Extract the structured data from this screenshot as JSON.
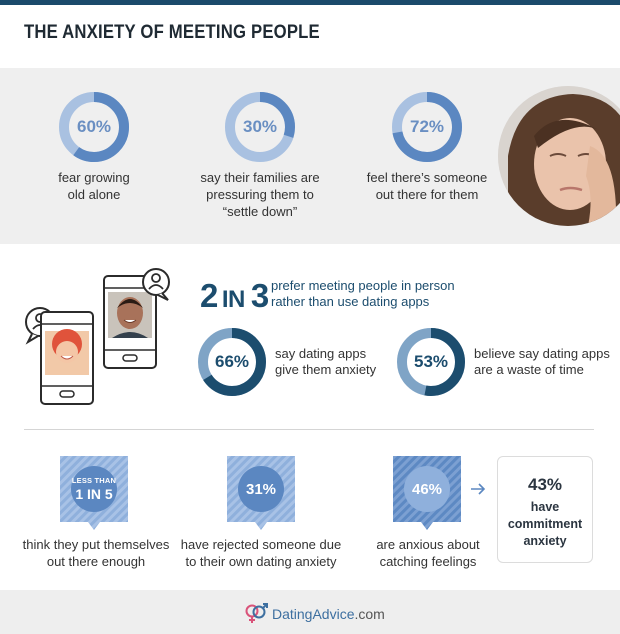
{
  "title": "THE ANXIETY OF MEETING PEOPLE",
  "section1": {
    "stats": [
      {
        "pct_label": "60%",
        "value": 60,
        "desc": [
          "fear growing",
          "old alone"
        ]
      },
      {
        "pct_label": "30%",
        "value": 30,
        "desc": [
          "say their families are",
          "pressuring them to",
          "“settle down”"
        ]
      },
      {
        "pct_label": "72%",
        "value": 72,
        "desc": [
          "feel there’s someone",
          "out there for them"
        ]
      }
    ]
  },
  "section2": {
    "ratio_num1": "2",
    "ratio_in": "IN",
    "ratio_num2": "3",
    "ratio_text": [
      "prefer meeting people in person",
      "rather than use dating apps"
    ],
    "stats": [
      {
        "pct_label": "66%",
        "value": 66,
        "desc": [
          "say dating apps",
          "give them anxiety"
        ]
      },
      {
        "pct_label": "53%",
        "value": 53,
        "desc": [
          "believe say dating apps",
          "are a waste of time"
        ]
      }
    ]
  },
  "section3": {
    "badge1": {
      "small": "LESS THAN",
      "big": "1 IN 5"
    },
    "badge2": {
      "big": "31%"
    },
    "badge3": {
      "big": "46%"
    },
    "desc1": [
      "think they put themselves",
      "out there enough"
    ],
    "desc2": [
      "have rejected someone due",
      "to their own dating anxiety"
    ],
    "desc3": [
      "are anxious about",
      "catching feelings"
    ],
    "box": {
      "pct": "43%",
      "lines": [
        "have",
        "commitment",
        "anxiety"
      ]
    }
  },
  "footer": {
    "brand_a": "DatingAdvice",
    "brand_b": ".com"
  },
  "colors": {
    "dark_blue": "#1c4d6e",
    "mid_blue": "#5b87c1",
    "light_blue": "#a9c1e1",
    "bg_gray": "#efefef"
  }
}
